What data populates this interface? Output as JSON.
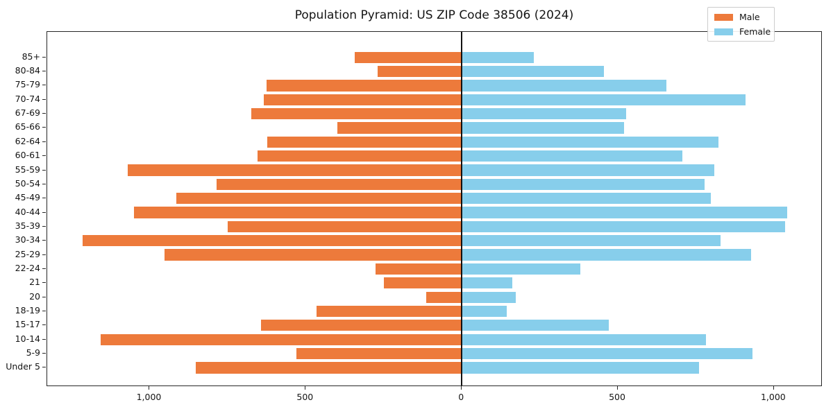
{
  "title": "Population Pyramid: US ZIP Code 38506 (2024)",
  "legend": {
    "position": "upper-right",
    "items": [
      {
        "label": "Male",
        "color": "#ed7a3b"
      },
      {
        "label": "Female",
        "color": "#87ceeb"
      }
    ]
  },
  "chart_data": {
    "type": "bar",
    "orientation": "horizontal",
    "title": "Population Pyramid: US ZIP Code 38506 (2024)",
    "xlabel": "",
    "ylabel": "",
    "grid": false,
    "center_line_value": 0,
    "xlim": [
      -1328,
      1156
    ],
    "x_ticks": {
      "values": [
        -1000,
        -500,
        0,
        500,
        1000
      ],
      "labels": [
        "1,000",
        "500",
        "0",
        "500",
        "1,000"
      ]
    },
    "categories_top_to_bottom": [
      "85+",
      "80-84",
      "75-79",
      "70-74",
      "67-69",
      "65-66",
      "62-64",
      "60-61",
      "55-59",
      "50-54",
      "45-49",
      "40-44",
      "35-39",
      "30-34",
      "25-29",
      "22-24",
      "21",
      "20",
      "18-19",
      "15-17",
      "10-14",
      "5-9",
      "Under 5"
    ],
    "series": [
      {
        "name": "Male",
        "side": "left",
        "color": "#ed7a3b",
        "values": [
          342,
          270,
          626,
          634,
          674,
          399,
          622,
          654,
          1069,
          786,
          914,
          1049,
          750,
          1215,
          953,
          277,
          249,
          114,
          466,
          643,
          1157,
          530,
          853
        ]
      },
      {
        "name": "Female",
        "side": "right",
        "color": "#87ceeb",
        "values": [
          231,
          455,
          656,
          910,
          526,
          521,
          823,
          707,
          808,
          777,
          797,
          1043,
          1035,
          829,
          928,
          381,
          163,
          174,
          144,
          472,
          782,
          931,
          760
        ]
      }
    ]
  }
}
